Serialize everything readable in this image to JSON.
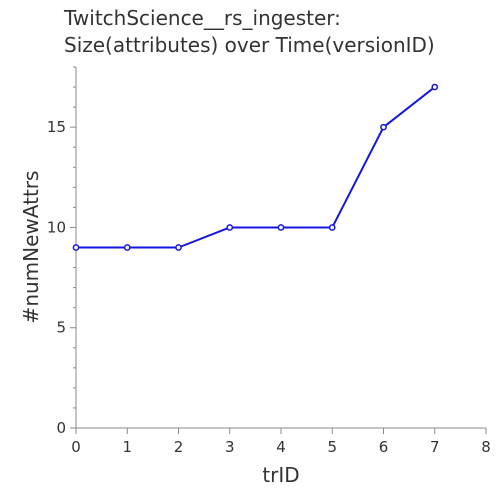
{
  "chart_data": {
    "type": "line",
    "title": [
      "TwitchScience__rs_ingester:",
      "Size(attributes) over Time(versionID)"
    ],
    "xlabel": "trID",
    "ylabel": "#numNewAttrs",
    "xlim": [
      0,
      8
    ],
    "ylim": [
      0,
      18
    ],
    "xticks": [
      0,
      1,
      2,
      3,
      4,
      5,
      6,
      7,
      8
    ],
    "yticks": [
      0,
      5,
      10,
      15
    ],
    "grid": false,
    "series": [
      {
        "x": [
          0,
          1,
          2,
          3,
          4,
          5,
          6,
          7
        ],
        "values": [
          9,
          9,
          9,
          10,
          10,
          10,
          15,
          17
        ],
        "color": "#1515e0"
      }
    ]
  }
}
